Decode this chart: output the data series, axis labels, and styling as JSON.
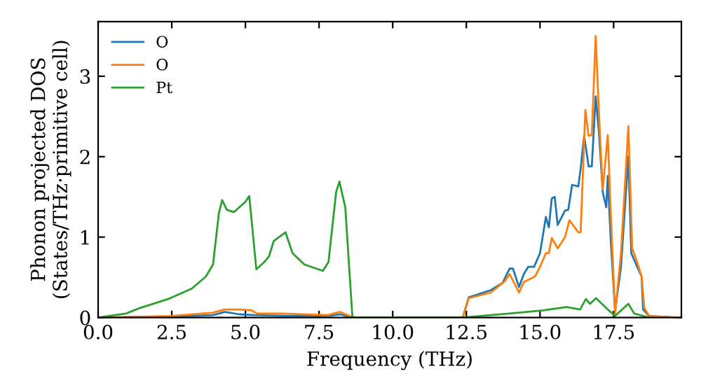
{
  "chart_data": {
    "type": "line",
    "xlabel": "Frequency (THz)",
    "ylabel": "Phonon projected DOS\n(States/THz·primitive cell)",
    "xlim": [
      0,
      19.8
    ],
    "ylim": [
      0,
      3.68
    ],
    "xticks": [
      {
        "value": 0,
        "label": "0.0"
      },
      2.5,
      {
        "value": 5,
        "label": "5.0"
      },
      7.5,
      {
        "value": 10,
        "label": "10.0"
      },
      12.5,
      {
        "value": 15,
        "label": "15.0"
      },
      17.5
    ],
    "yticks": [
      0,
      1,
      2,
      3
    ],
    "legend": "top left",
    "grid": false,
    "marker": "none",
    "line_style": "solid",
    "series": [
      {
        "name": "O",
        "color": "#1f77b4",
        "x": [
          0,
          2.5,
          3.9,
          4.3,
          4.8,
          5.3,
          6.5,
          7.8,
          8.2,
          8.66,
          12.38,
          12.58,
          13.33,
          13.73,
          13.97,
          14.08,
          14.29,
          14.45,
          14.6,
          14.8,
          15.0,
          15.2,
          15.3,
          15.4,
          15.5,
          15.6,
          15.85,
          15.96,
          16.09,
          16.3,
          16.38,
          16.5,
          16.65,
          16.76,
          16.89,
          17.0,
          17.13,
          17.25,
          17.3,
          17.4,
          17.55,
          17.75,
          18.0,
          18.1,
          18.3,
          18.45,
          18.5,
          18.7,
          19.6
        ],
        "values": [
          0,
          0.01,
          0.03,
          0.07,
          0.04,
          0.03,
          0.02,
          0.02,
          0.04,
          0,
          0,
          0.25,
          0.34,
          0.43,
          0.61,
          0.61,
          0.38,
          0.54,
          0.63,
          0.63,
          0.8,
          1.25,
          1.12,
          1.48,
          1.5,
          1.15,
          1.33,
          1.34,
          1.65,
          1.63,
          1.85,
          2.26,
          1.88,
          1.88,
          2.75,
          2.31,
          1.56,
          1.37,
          1.76,
          0.98,
          0.08,
          0.63,
          2.0,
          0.8,
          0.63,
          0.51,
          0.1,
          0.02,
          0
        ]
      },
      {
        "name": "O",
        "color": "#ff7f0e",
        "x": [
          0,
          2.5,
          3.9,
          4.3,
          4.8,
          5.2,
          5.4,
          6.2,
          7.8,
          8.2,
          8.66,
          12.38,
          12.58,
          13.33,
          13.8,
          13.97,
          14.29,
          14.45,
          14.83,
          15.0,
          15.2,
          15.3,
          15.4,
          15.6,
          15.85,
          16.0,
          16.3,
          16.38,
          16.54,
          16.65,
          16.76,
          16.89,
          17.0,
          17.13,
          17.3,
          17.4,
          17.55,
          17.75,
          18.0,
          18.13,
          18.3,
          18.45,
          18.54,
          18.7,
          19.6
        ],
        "values": [
          0,
          0.02,
          0.06,
          0.1,
          0.1,
          0.09,
          0.05,
          0.05,
          0.03,
          0.07,
          0,
          0,
          0.24,
          0.31,
          0.45,
          0.54,
          0.31,
          0.44,
          0.51,
          0.63,
          0.8,
          0.8,
          0.99,
          0.86,
          1.0,
          1.21,
          1.06,
          1.06,
          2.58,
          2.26,
          2.27,
          3.5,
          2.55,
          1.59,
          2.27,
          1.33,
          0.05,
          0.8,
          2.38,
          0.86,
          0.69,
          0.51,
          0.12,
          0.02,
          0
        ]
      },
      {
        "name": "Pt",
        "color": "#2ca02c",
        "x": [
          0,
          0.95,
          1.43,
          2.38,
          3.18,
          3.66,
          3.9,
          4.1,
          4.21,
          4.37,
          4.61,
          5.0,
          5.13,
          5.37,
          5.64,
          5.8,
          5.96,
          6.36,
          6.6,
          7.0,
          7.63,
          7.82,
          8.08,
          8.19,
          8.39,
          8.63,
          8.66,
          12.38,
          14.3,
          15.1,
          15.9,
          16.36,
          16.56,
          16.7,
          16.9,
          17.3,
          17.55,
          18.0,
          18.2,
          18.7
        ],
        "values": [
          0,
          0.05,
          0.12,
          0.23,
          0.36,
          0.51,
          0.66,
          1.3,
          1.46,
          1.34,
          1.31,
          1.44,
          1.51,
          0.6,
          0.69,
          0.76,
          0.95,
          1.06,
          0.8,
          0.66,
          0.58,
          0.69,
          1.56,
          1.69,
          1.37,
          0.02,
          0,
          0,
          0.06,
          0.09,
          0.13,
          0.1,
          0.23,
          0.17,
          0.24,
          0.1,
          0.02,
          0.17,
          0.05,
          0
        ]
      }
    ]
  }
}
